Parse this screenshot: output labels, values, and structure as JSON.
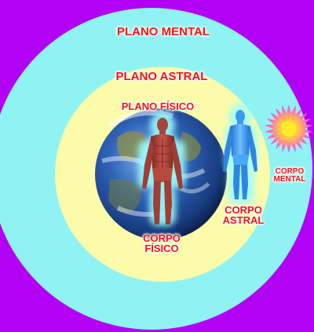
{
  "colors": {
    "background": "#b200f5",
    "mental_plane": "#8ff3f3",
    "astral_plane": "#fbfbaa",
    "physical_plane": "#1e3f8a",
    "label_text": "#ff1010",
    "label_glow": "#ffffff",
    "physical_body": "#b8443a",
    "physical_aura": "#99fdfd",
    "astral_body": "#3a9bf0",
    "mental_body_outer": "#ff33ff",
    "mental_body_inner": "#ffee22"
  },
  "labels": {
    "plano_mental": "PLANO MENTAL",
    "plano_astral": "PLANO ASTRAL",
    "plano_fisico": "PLANO FÍSICO",
    "corpo_fisico": [
      "CORPO",
      "FÍSICO"
    ],
    "corpo_astral": [
      "CORPO",
      "ASTRAL"
    ],
    "corpo_mental": [
      "CORPO",
      "MENTAL"
    ]
  }
}
